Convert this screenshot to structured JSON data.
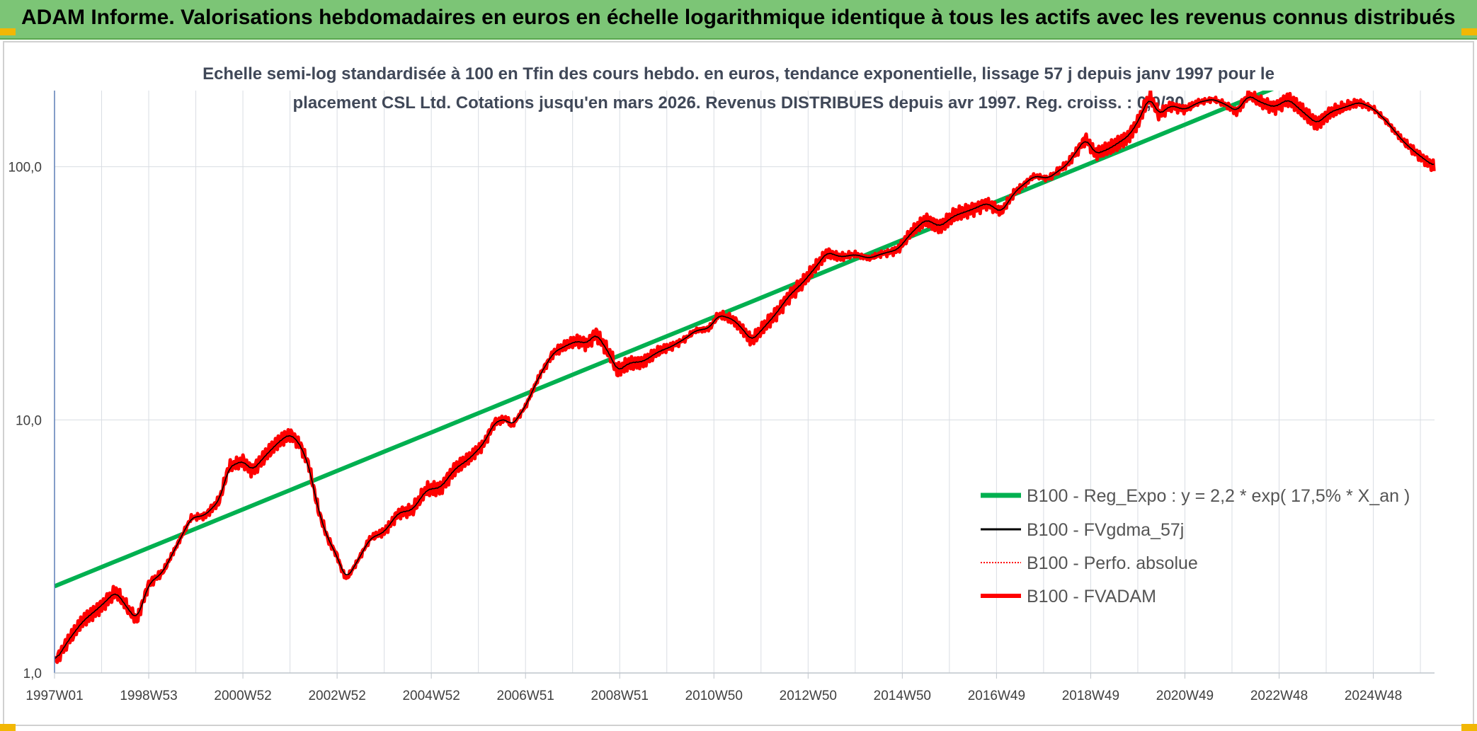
{
  "header": {
    "title": "ADAM Informe. Valorisations hebdomadaires en euros en échelle logarithmique identique à tous les actifs avec les revenus connus distribués"
  },
  "colors": {
    "header_bg": "#7cc576",
    "corner_accent": "#f2b705",
    "reg_expo": "#00b050",
    "fvgdma": "#000000",
    "perfo": "#ff0000",
    "fvadam": "#ff0000",
    "grid": "#d9dde3"
  },
  "chart_data": {
    "type": "line",
    "subtitle_line1": "Echelle semi-log standardisée à 100 en Tfin des cours hebdo. en euros, tendance exponentielle, lissage 57 j depuis janv 1997 pour le",
    "subtitle_line2": "placement CSL Ltd. Cotations jusqu'en mars 2026. Revenus DISTRIBUES depuis avr 1997. Reg. croiss. : 0,0/20",
    "y_scale": "log",
    "ylim": [
      1,
      200
    ],
    "xlim": [
      1997.0,
      2026.3
    ],
    "y_ticks": [
      {
        "value": 1,
        "label": "1,0"
      },
      {
        "value": 10,
        "label": "10,0"
      },
      {
        "value": 100,
        "label": "100,0"
      }
    ],
    "x_ticks": [
      {
        "value": 1997.0,
        "label": "1997W01"
      },
      {
        "value": 1999.0,
        "label": "1998W53"
      },
      {
        "value": 2001.0,
        "label": "2000W52"
      },
      {
        "value": 2003.0,
        "label": "2002W52"
      },
      {
        "value": 2005.0,
        "label": "2004W52"
      },
      {
        "value": 2007.0,
        "label": "2006W51"
      },
      {
        "value": 2009.0,
        "label": "2008W51"
      },
      {
        "value": 2011.0,
        "label": "2010W50"
      },
      {
        "value": 2013.0,
        "label": "2012W50"
      },
      {
        "value": 2015.0,
        "label": "2014W50"
      },
      {
        "value": 2017.0,
        "label": "2016W49"
      },
      {
        "value": 2019.0,
        "label": "2018W49"
      },
      {
        "value": 2021.0,
        "label": "2020W49"
      },
      {
        "value": 2023.0,
        "label": "2022W48"
      },
      {
        "value": 2025.0,
        "label": "2024W48"
      }
    ],
    "x_minor_ticks": [
      1998.0,
      2000.0,
      2002.0,
      2004.0,
      2006.0,
      2008.0,
      2010.0,
      2012.0,
      2014.0,
      2016.0,
      2018.0,
      2020.0,
      2022.0,
      2024.0,
      2026.0
    ],
    "grid": true,
    "legend_position": "bottom-right",
    "regression": {
      "a": 2.2,
      "rate": 0.175,
      "x0": 1997.0
    },
    "series": [
      {
        "key": "reg_expo",
        "name": "B100 - Reg_Expo : y = 2,2 * exp( 17,5% *  X_an )"
      },
      {
        "key": "fvgdma",
        "name": "B100 - FVgdma_57j"
      },
      {
        "key": "perfo",
        "name": "B100 - Perfo. absolue"
      },
      {
        "key": "fvadam",
        "name": "B100 - FVADAM"
      }
    ],
    "fvadam_anchors": [
      [
        1997.0,
        1.1
      ],
      [
        1997.3,
        1.35
      ],
      [
        1997.6,
        1.6
      ],
      [
        1998.0,
        1.85
      ],
      [
        1998.3,
        2.1
      ],
      [
        1998.6,
        1.75
      ],
      [
        1998.75,
        1.62
      ],
      [
        1999.0,
        2.25
      ],
      [
        1999.3,
        2.5
      ],
      [
        1999.6,
        3.2
      ],
      [
        1999.9,
        4.1
      ],
      [
        2000.2,
        4.2
      ],
      [
        2000.5,
        4.8
      ],
      [
        2000.7,
        6.5
      ],
      [
        2001.0,
        6.9
      ],
      [
        2001.2,
        6.3
      ],
      [
        2001.5,
        7.3
      ],
      [
        2001.8,
        8.3
      ],
      [
        2002.0,
        8.8
      ],
      [
        2002.2,
        8.1
      ],
      [
        2002.4,
        6.6
      ],
      [
        2002.6,
        4.4
      ],
      [
        2002.8,
        3.4
      ],
      [
        2003.0,
        2.9
      ],
      [
        2003.1,
        2.55
      ],
      [
        2003.2,
        2.35
      ],
      [
        2003.4,
        2.7
      ],
      [
        2003.7,
        3.4
      ],
      [
        2004.0,
        3.6
      ],
      [
        2004.3,
        4.3
      ],
      [
        2004.6,
        4.4
      ],
      [
        2004.9,
        5.3
      ],
      [
        2005.2,
        5.4
      ],
      [
        2005.5,
        6.4
      ],
      [
        2005.8,
        7.0
      ],
      [
        2006.1,
        8.0
      ],
      [
        2006.35,
        9.8
      ],
      [
        2006.6,
        10.1
      ],
      [
        2006.7,
        9.4
      ],
      [
        2007.0,
        11.3
      ],
      [
        2007.3,
        15.0
      ],
      [
        2007.6,
        18.5
      ],
      [
        2007.9,
        19.8
      ],
      [
        2008.1,
        20.5
      ],
      [
        2008.3,
        20.0
      ],
      [
        2008.5,
        22.0
      ],
      [
        2008.8,
        18.0
      ],
      [
        2008.95,
        15.5
      ],
      [
        2009.2,
        16.8
      ],
      [
        2009.5,
        17.0
      ],
      [
        2009.8,
        18.5
      ],
      [
        2010.1,
        19.5
      ],
      [
        2010.4,
        21.0
      ],
      [
        2010.6,
        22.5
      ],
      [
        2010.9,
        23.0
      ],
      [
        2011.1,
        26.0
      ],
      [
        2011.4,
        25.0
      ],
      [
        2011.6,
        23.0
      ],
      [
        2011.8,
        20.5
      ],
      [
        2012.0,
        22.5
      ],
      [
        2012.3,
        26.0
      ],
      [
        2012.6,
        31.0
      ],
      [
        2012.9,
        35.0
      ],
      [
        2013.2,
        41.0
      ],
      [
        2013.4,
        46.0
      ],
      [
        2013.7,
        44.0
      ],
      [
        2014.0,
        45.0
      ],
      [
        2014.3,
        43.5
      ],
      [
        2014.6,
        45.5
      ],
      [
        2014.9,
        47.0
      ],
      [
        2015.2,
        55.0
      ],
      [
        2015.5,
        62.0
      ],
      [
        2015.8,
        58.0
      ],
      [
        2016.1,
        64.0
      ],
      [
        2016.5,
        68.0
      ],
      [
        2016.8,
        72.0
      ],
      [
        2017.1,
        66.0
      ],
      [
        2017.4,
        80.0
      ],
      [
        2017.8,
        92.0
      ],
      [
        2018.1,
        90.0
      ],
      [
        2018.5,
        102.0
      ],
      [
        2018.9,
        130.0
      ],
      [
        2019.1,
        112.0
      ],
      [
        2019.4,
        118.0
      ],
      [
        2019.8,
        132.0
      ],
      [
        2020.0,
        150.0
      ],
      [
        2020.25,
        190.0
      ],
      [
        2020.45,
        160.0
      ],
      [
        2020.7,
        175.0
      ],
      [
        2021.0,
        168.0
      ],
      [
        2021.3,
        180.0
      ],
      [
        2021.6,
        185.0
      ],
      [
        2021.9,
        175.0
      ],
      [
        2022.1,
        165.0
      ],
      [
        2022.35,
        192.0
      ],
      [
        2022.6,
        180.0
      ],
      [
        2022.9,
        172.0
      ],
      [
        2023.2,
        185.0
      ],
      [
        2023.5,
        165.0
      ],
      [
        2023.8,
        148.0
      ],
      [
        2024.1,
        165.0
      ],
      [
        2024.4,
        172.0
      ],
      [
        2024.7,
        180.0
      ],
      [
        2025.0,
        170.0
      ],
      [
        2025.3,
        150.0
      ],
      [
        2025.6,
        128.0
      ],
      [
        2025.8,
        118.0
      ],
      [
        2026.0,
        110.0
      ],
      [
        2026.15,
        105.0
      ],
      [
        2026.3,
        100.0
      ]
    ]
  }
}
